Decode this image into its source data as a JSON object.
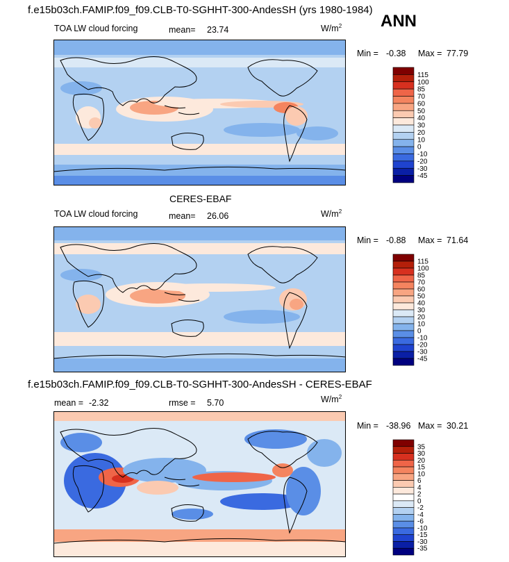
{
  "header": {
    "title": "f.e15b03ch.FAMIP.f09_f09.CLB-T0-SGHHT-300-AndesSH (yrs 1980-1984)",
    "season": "ANN"
  },
  "panels": [
    {
      "variable_label": "TOA LW cloud forcing",
      "mean_label": "mean=",
      "mean_value": "23.74",
      "units_base": "W/m",
      "units_exp": "2",
      "min_label": "Min =",
      "min_value": "-0.38",
      "max_label": "Max =",
      "max_value": "77.79"
    },
    {
      "dataset_title": "CERES-EBAF",
      "variable_label": "TOA LW cloud forcing",
      "mean_label": "mean=",
      "mean_value": "26.06",
      "units_base": "W/m",
      "units_exp": "2",
      "min_label": "Min =",
      "min_value": "-0.88",
      "max_label": "Max =",
      "max_value": "71.64"
    },
    {
      "diff_title": "f.e15b03ch.FAMIP.f09_f09.CLB-T0-SGHHT-300-AndesSH - CERES-EBAF",
      "mean_label": "mean =",
      "mean_value": "-2.32",
      "rmse_label": "rmse =",
      "rmse_value": "5.70",
      "units_base": "W/m",
      "units_exp": "2",
      "min_label": "Min =",
      "min_value": "-38.96",
      "max_label": "Max =",
      "max_value": "30.21"
    }
  ],
  "chart_data": [
    {
      "type": "heatmap",
      "title": "TOA LW cloud forcing",
      "colorbar_levels": [
        "115",
        "100",
        "85",
        "70",
        "60",
        "50",
        "40",
        "30",
        "20",
        "10",
        "0",
        "-10",
        "-20",
        "-30",
        "-45"
      ],
      "colorbar_colors": [
        "#7f0000",
        "#b41f0a",
        "#d7301f",
        "#ef6548",
        "#f4845f",
        "#f8a582",
        "#fbcab1",
        "#fde9dc",
        "#dbe9f6",
        "#b3d1f1",
        "#84b3ec",
        "#5a8ee6",
        "#3a6ae0",
        "#1f43cf",
        "#0a1fa6",
        "#00007f"
      ],
      "min": -0.38,
      "max": 77.79,
      "mean": 23.74
    },
    {
      "type": "heatmap",
      "title": "TOA LW cloud forcing",
      "colorbar_levels": [
        "115",
        "100",
        "85",
        "70",
        "60",
        "50",
        "40",
        "30",
        "20",
        "10",
        "0",
        "-10",
        "-20",
        "-30",
        "-45"
      ],
      "colorbar_colors": [
        "#7f0000",
        "#b41f0a",
        "#d7301f",
        "#ef6548",
        "#f4845f",
        "#f8a582",
        "#fbcab1",
        "#fde9dc",
        "#dbe9f6",
        "#b3d1f1",
        "#84b3ec",
        "#5a8ee6",
        "#3a6ae0",
        "#1f43cf",
        "#0a1fa6",
        "#00007f"
      ],
      "min": -0.88,
      "max": 71.64,
      "mean": 26.06
    },
    {
      "type": "heatmap",
      "title": "",
      "colorbar_levels": [
        "35",
        "30",
        "20",
        "15",
        "10",
        "6",
        "4",
        "2",
        "0",
        "-2",
        "-4",
        "-6",
        "-10",
        "-15",
        "-30",
        "-35"
      ],
      "colorbar_colors": [
        "#7f0000",
        "#b41f0a",
        "#d7301f",
        "#ef6548",
        "#f4845f",
        "#f8a582",
        "#fbcab1",
        "#fde9dc",
        "#ffffff",
        "#dbe9f6",
        "#b3d1f1",
        "#84b3ec",
        "#5a8ee6",
        "#3a6ae0",
        "#1f43cf",
        "#0a1fa6",
        "#00007f"
      ],
      "min": -38.96,
      "max": 30.21,
      "mean": -2.32,
      "rmse": 5.7
    }
  ]
}
